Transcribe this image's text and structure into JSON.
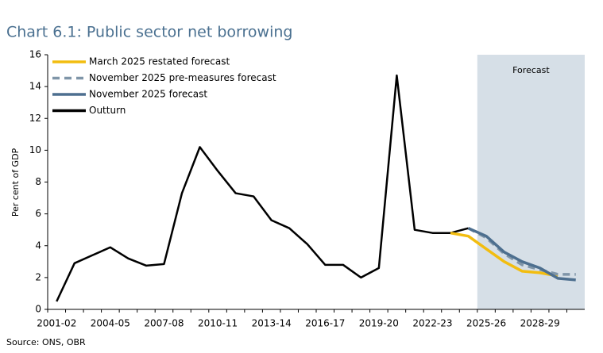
{
  "chart_data": {
    "type": "line",
    "title": "Chart 6.1: Public sector net borrowing",
    "ylabel": "Per cent of GDP",
    "source": "Source: ONS, OBR",
    "forecast_label": "Forecast",
    "categories": [
      "2001-02",
      null,
      null,
      "2004-05",
      null,
      null,
      "2007-08",
      null,
      null,
      "2010-11",
      null,
      null,
      "2013-14",
      null,
      null,
      "2016-17",
      null,
      null,
      "2019-20",
      null,
      null,
      "2022-23",
      null,
      null,
      "2025-26",
      null,
      null,
      "2028-29",
      null,
      null
    ],
    "series": [
      {
        "name": "March 2025 restated forecast",
        "color": "#f2bd10",
        "dashed": false,
        "values": [
          null,
          null,
          null,
          null,
          null,
          null,
          null,
          null,
          null,
          null,
          null,
          null,
          null,
          null,
          null,
          null,
          null,
          null,
          null,
          null,
          null,
          null,
          4.8,
          4.6,
          3.8,
          3.0,
          2.4,
          2.3,
          2.1,
          null
        ]
      },
      {
        "name": "November 2025 pre-measures forecast",
        "color": "#7f95a8",
        "dashed": true,
        "values": [
          null,
          null,
          null,
          null,
          null,
          null,
          null,
          null,
          null,
          null,
          null,
          null,
          null,
          null,
          null,
          null,
          null,
          null,
          null,
          null,
          null,
          null,
          null,
          5.1,
          4.5,
          3.5,
          2.8,
          2.5,
          2.2,
          2.2
        ]
      },
      {
        "name": "November 2025 forecast",
        "color": "#4d6f8f",
        "dashed": false,
        "values": [
          null,
          null,
          null,
          null,
          null,
          null,
          null,
          null,
          null,
          null,
          null,
          null,
          null,
          null,
          null,
          null,
          null,
          null,
          null,
          null,
          null,
          null,
          null,
          5.1,
          4.6,
          3.6,
          3.0,
          2.6,
          1.95,
          1.85
        ]
      },
      {
        "name": "Outturn",
        "color": "#000000",
        "dashed": false,
        "values": [
          0.5,
          2.9,
          3.4,
          3.9,
          3.2,
          2.75,
          2.85,
          7.3,
          10.2,
          8.7,
          7.3,
          7.1,
          5.6,
          5.1,
          4.1,
          2.8,
          2.8,
          2.0,
          2.6,
          14.7,
          5.0,
          4.8,
          4.8,
          5.1,
          null,
          null,
          null,
          null,
          null,
          null
        ]
      }
    ],
    "ylim": [
      0,
      16
    ],
    "yticks": [
      0,
      2,
      4,
      6,
      8,
      10,
      12,
      14,
      16
    ]
  }
}
